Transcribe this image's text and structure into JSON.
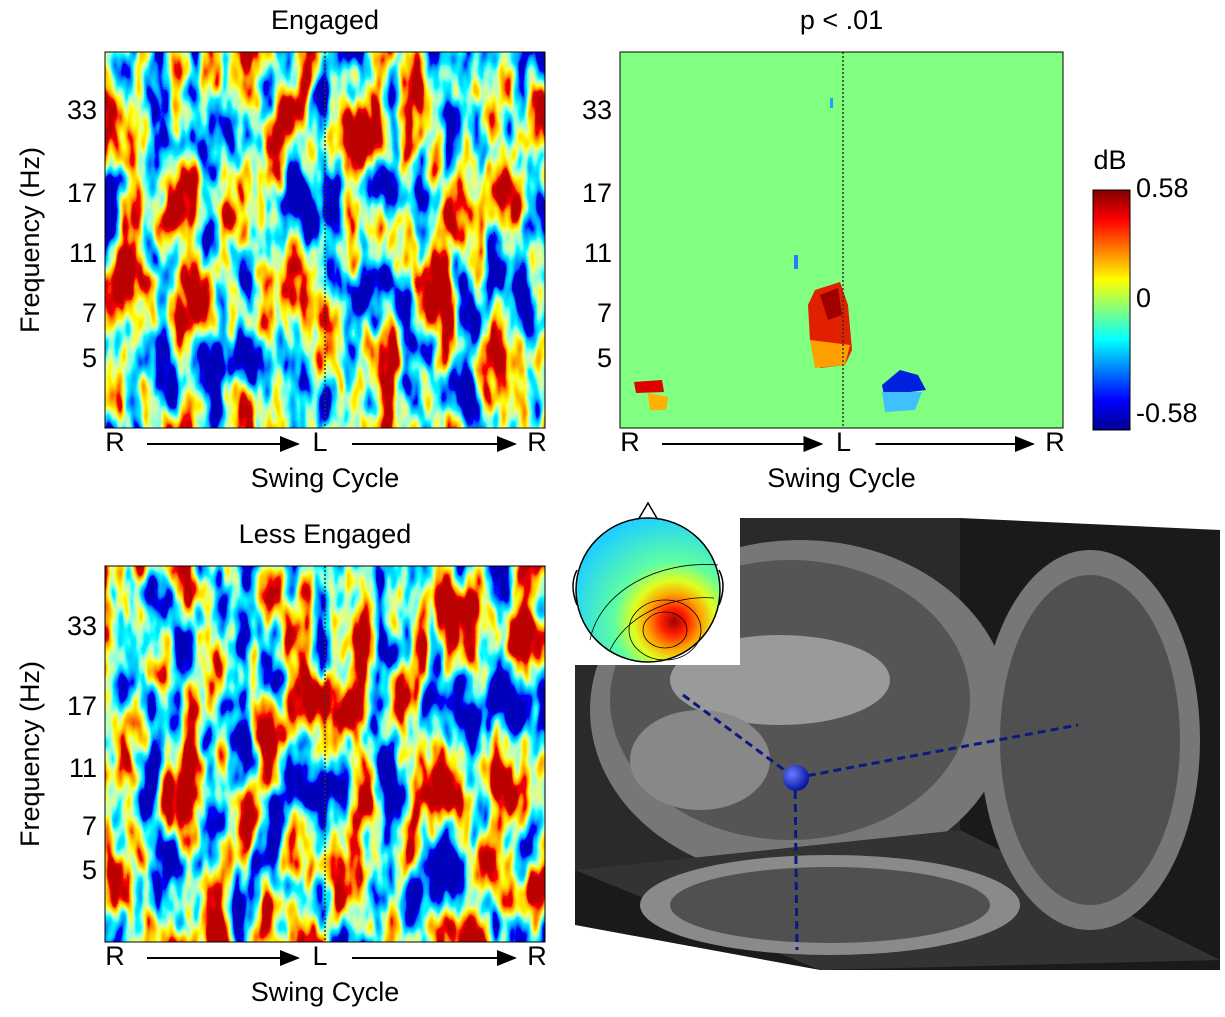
{
  "panels": [
    {
      "title": "Engaged",
      "y_label": "Frequency (Hz)",
      "y_ticks": [
        "33",
        "17",
        "11",
        "7",
        "5"
      ],
      "x_ticks": [
        "R",
        "L",
        "R"
      ],
      "x_label": "Swing Cycle"
    },
    {
      "title": "p < .01",
      "y_ticks": [
        "33",
        "17",
        "11",
        "7",
        "5"
      ],
      "x_ticks": [
        "R",
        "L",
        "R"
      ],
      "x_label": "Swing Cycle"
    },
    {
      "title": "Less Engaged",
      "y_label": "Frequency (Hz)",
      "y_ticks": [
        "33",
        "17",
        "11",
        "7",
        "5"
      ],
      "x_ticks": [
        "R",
        "L",
        "R"
      ],
      "x_label": "Swing Cycle"
    }
  ],
  "colorbar": {
    "label": "dB",
    "max": "0.58",
    "mid": "0",
    "min": "-0.58"
  }
}
